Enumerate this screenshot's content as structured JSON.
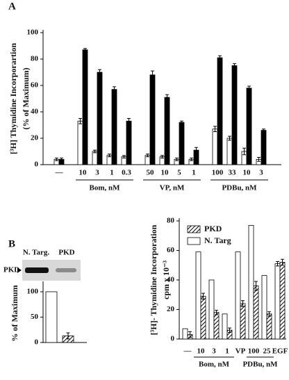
{
  "chart_data": [
    {
      "type": "bar",
      "label": "A",
      "ylabel": [
        "[³H] Thymidine Incorporartion",
        "(% of Maximum)"
      ],
      "categories": [
        "—",
        "10",
        "3",
        "1",
        "0.3",
        "50",
        "10",
        "5",
        "1",
        "100",
        "33",
        "10",
        "3"
      ],
      "groups": [
        {
          "label": "Bom, nM",
          "first": 1,
          "last": 4
        },
        {
          "label": "VP, nM",
          "first": 5,
          "last": 8
        },
        {
          "label": "PDBu, nM",
          "first": 9,
          "last": 12
        }
      ],
      "series": [
        {
          "color": "#ffffff",
          "values": [
            4,
            33,
            10,
            7,
            6,
            7,
            6,
            4,
            4,
            27,
            20,
            10,
            4
          ],
          "errors": [
            1,
            2,
            1,
            1,
            1,
            1,
            1,
            1,
            1,
            2,
            1.5,
            2.5,
            1.5
          ]
        },
        {
          "color": "#000000",
          "values": [
            4,
            87,
            70,
            57,
            33,
            68,
            51,
            32,
            11,
            81,
            75,
            58,
            26
          ],
          "errors": [
            1,
            1,
            2,
            2,
            2,
            3,
            2,
            1,
            2,
            1.5,
            1.5,
            1.5,
            1
          ]
        }
      ],
      "ylim": [
        0,
        100
      ],
      "yticks": [
        0,
        20,
        40,
        60,
        80,
        100
      ]
    },
    {
      "type": "bar",
      "label": "B",
      "ylabel": [
        "% of Maximum"
      ],
      "categories": [
        null
      ],
      "series": [
        {
          "color": "#ffffff",
          "values": [
            100
          ],
          "errors": [
            null
          ]
        },
        {
          "color": "#000000",
          "pattern": "hatch",
          "values": [
            13
          ],
          "errors": [
            6
          ]
        }
      ],
      "ylim": [
        0,
        115
      ],
      "yticks": [
        0,
        50,
        100
      ]
    },
    {
      "type": "bar",
      "ylabel": [
        "[³H]- Thymidine Incorporation",
        "cpm x 10⁻³"
      ],
      "categories": [
        "—",
        "10",
        "3",
        "1",
        "VP",
        "100",
        "25",
        "EGF"
      ],
      "groups": [
        {
          "label": "Bom, nM",
          "first": 1,
          "last": 3
        },
        {
          "label": "PDBu, nM",
          "first": 5,
          "last": 6
        }
      ],
      "series": [
        {
          "name": "N. Targ",
          "color": "#ffffff",
          "values": [
            7,
            59,
            40,
            17,
            59,
            77,
            43,
            51
          ],
          "errors": [
            null,
            null,
            null,
            null,
            null,
            null,
            null,
            1.5
          ]
        },
        {
          "name": "PKD",
          "color": "#000000",
          "pattern": "hatch",
          "values": [
            3,
            29,
            18,
            6,
            24,
            36,
            17,
            52
          ],
          "errors": [
            2,
            2,
            1.5,
            1.5,
            2,
            3,
            1.5,
            2
          ]
        }
      ],
      "legend": "upper left",
      "ylim": [
        0,
        80
      ],
      "yticks": [
        0,
        20,
        40,
        60,
        80
      ]
    }
  ],
  "blot": {
    "lanes": [
      "N. Targ.",
      "PKD"
    ],
    "marker": "PKD"
  }
}
